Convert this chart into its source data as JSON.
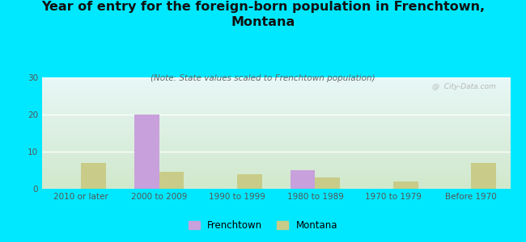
{
  "title": "Year of entry for the foreign-born population in Frenchtown,\nMontana",
  "subtitle": "(Note: State values scaled to Frenchtown population)",
  "categories": [
    "2010 or later",
    "2000 to 2009",
    "1990 to 1999",
    "1980 to 1989",
    "1970 to 1979",
    "Before 1970"
  ],
  "frenchtown_values": [
    0,
    20,
    0,
    5,
    0,
    0
  ],
  "montana_values": [
    7,
    4.5,
    4,
    3,
    2,
    7
  ],
  "frenchtown_color": "#c8a0dc",
  "montana_color": "#c8cc88",
  "background_color": "#00e8ff",
  "ylim": [
    0,
    30
  ],
  "yticks": [
    0,
    10,
    20,
    30
  ],
  "watermark": "@  City-Data.com",
  "bar_width": 0.32,
  "title_fontsize": 11.5,
  "subtitle_fontsize": 7.5,
  "tick_fontsize": 7.5,
  "legend_fontsize": 8.5
}
